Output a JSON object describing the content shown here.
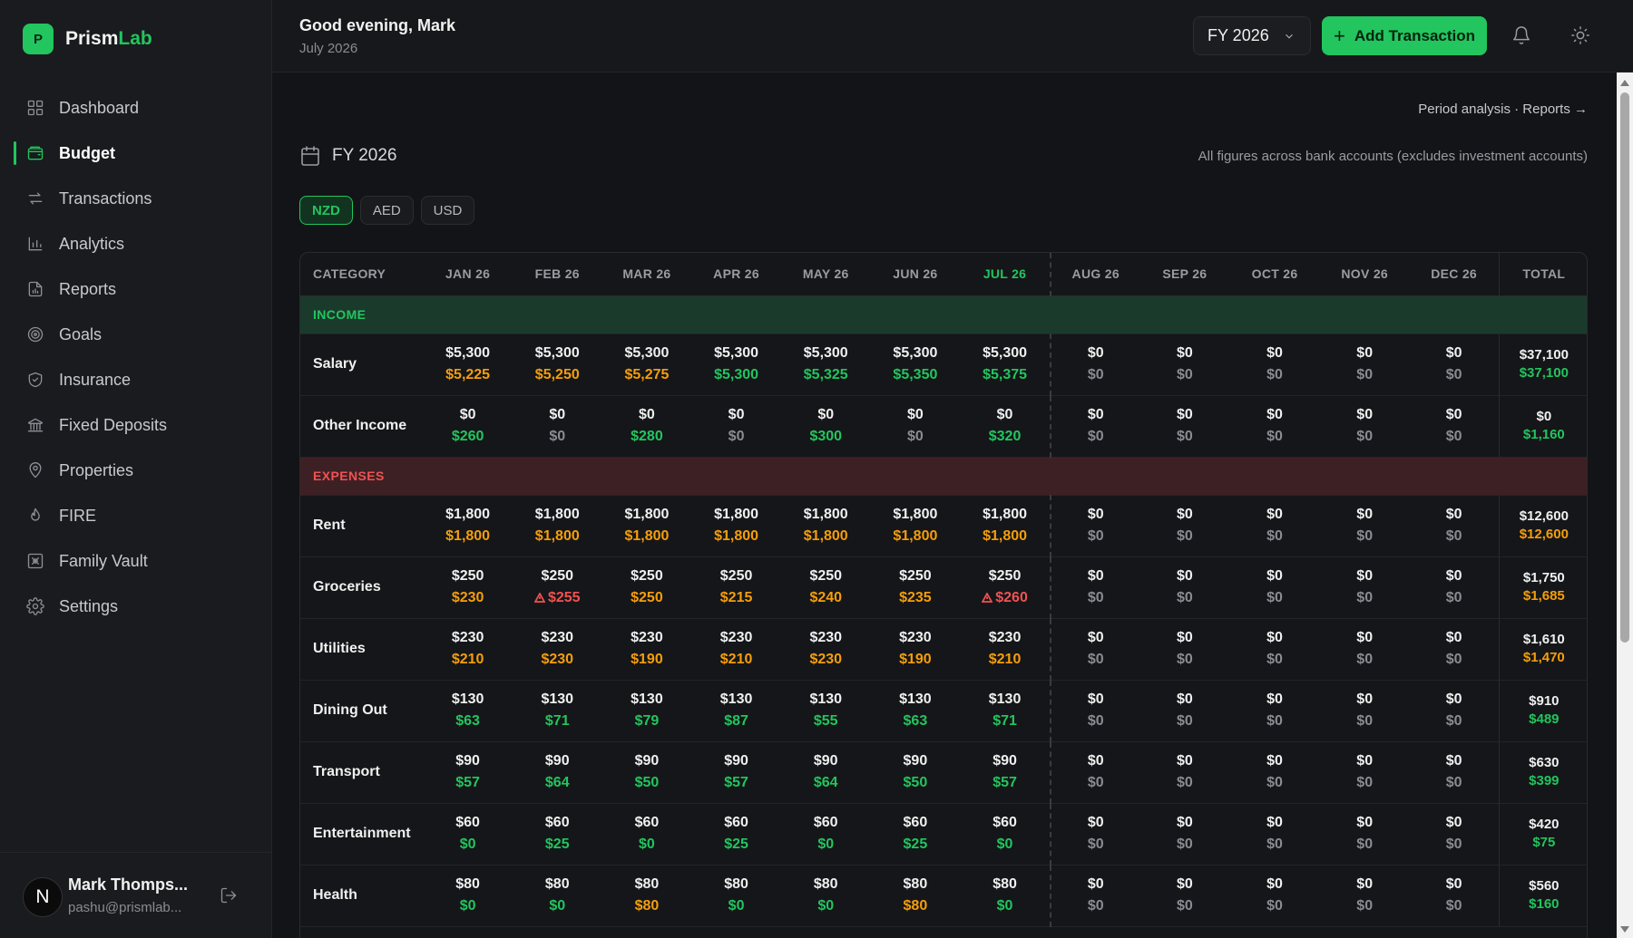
{
  "app": {
    "logo_letter": "P",
    "name_main": "Prism",
    "name_accent": "Lab",
    "accent_color": "#22c55e"
  },
  "sidebar": {
    "items": [
      {
        "label": "Dashboard",
        "icon": "grid-icon"
      },
      {
        "label": "Budget",
        "icon": "wallet-icon",
        "active": true
      },
      {
        "label": "Transactions",
        "icon": "arrows-icon"
      },
      {
        "label": "Analytics",
        "icon": "bar-chart-icon"
      },
      {
        "label": "Reports",
        "icon": "file-chart-icon"
      },
      {
        "label": "Goals",
        "icon": "target-icon"
      },
      {
        "label": "Insurance",
        "icon": "shield-icon"
      },
      {
        "label": "Fixed Deposits",
        "icon": "bank-icon"
      },
      {
        "label": "Properties",
        "icon": "map-pin-icon"
      },
      {
        "label": "FIRE",
        "icon": "flame-icon"
      },
      {
        "label": "Family Vault",
        "icon": "vault-icon"
      },
      {
        "label": "Settings",
        "icon": "gear-icon"
      }
    ],
    "user": {
      "initial": "N",
      "name": "Mark Thomps...",
      "email": "pashu@prismlab..."
    }
  },
  "topbar": {
    "greeting": "Good evening, Mark",
    "date": "July 2026",
    "fy_selected": "FY 2026",
    "add_label": "Add Transaction"
  },
  "main": {
    "breadcrumb": "Period analysis · Reports →",
    "period": "FY 2026",
    "note": "All figures across bank accounts (excludes investment accounts)",
    "currencies": [
      "NZD",
      "AED",
      "USD"
    ],
    "active_currency": "NZD"
  },
  "table": {
    "columns": [
      "CATEGORY",
      "JAN 26",
      "FEB 26",
      "MAR 26",
      "APR 26",
      "MAY 26",
      "JUN 26",
      "JUL 26",
      "AUG 26",
      "SEP 26",
      "OCT 26",
      "NOV 26",
      "DEC 26",
      "TOTAL"
    ],
    "current_month_index": 7,
    "income_label": "INCOME",
    "expenses_label": "EXPENSES",
    "income": [
      {
        "category": "Salary",
        "budget": [
          "$5,300",
          "$5,300",
          "$5,300",
          "$5,300",
          "$5,300",
          "$5,300",
          "$5,300",
          "$0",
          "$0",
          "$0",
          "$0",
          "$0"
        ],
        "actual": [
          "$5,225",
          "$5,250",
          "$5,275",
          "$5,300",
          "$5,325",
          "$5,350",
          "$5,375",
          "$0",
          "$0",
          "$0",
          "$0",
          "$0"
        ],
        "status": [
          "amber",
          "amber",
          "amber",
          "green",
          "green",
          "green",
          "green",
          "future",
          "future",
          "future",
          "future",
          "future"
        ],
        "total_budget": "$37,100",
        "total_actual": "$37,100",
        "total_status": "green"
      },
      {
        "category": "Other Income",
        "budget": [
          "$0",
          "$0",
          "$0",
          "$0",
          "$0",
          "$0",
          "$0",
          "$0",
          "$0",
          "$0",
          "$0",
          "$0"
        ],
        "actual": [
          "$260",
          "$0",
          "$280",
          "$0",
          "$300",
          "$0",
          "$320",
          "$0",
          "$0",
          "$0",
          "$0",
          "$0"
        ],
        "status": [
          "green",
          "muted",
          "green",
          "muted",
          "green",
          "muted",
          "green",
          "future",
          "future",
          "future",
          "future",
          "future"
        ],
        "total_budget": "$0",
        "total_actual": "$1,160",
        "total_status": "green"
      }
    ],
    "expenses": [
      {
        "category": "Rent",
        "budget": [
          "$1,800",
          "$1,800",
          "$1,800",
          "$1,800",
          "$1,800",
          "$1,800",
          "$1,800",
          "$0",
          "$0",
          "$0",
          "$0",
          "$0"
        ],
        "actual": [
          "$1,800",
          "$1,800",
          "$1,800",
          "$1,800",
          "$1,800",
          "$1,800",
          "$1,800",
          "$0",
          "$0",
          "$0",
          "$0",
          "$0"
        ],
        "status": [
          "amber",
          "amber",
          "amber",
          "amber",
          "amber",
          "amber",
          "amber",
          "future",
          "future",
          "future",
          "future",
          "future"
        ],
        "total_budget": "$12,600",
        "total_actual": "$12,600",
        "total_status": "amber"
      },
      {
        "category": "Groceries",
        "budget": [
          "$250",
          "$250",
          "$250",
          "$250",
          "$250",
          "$250",
          "$250",
          "$0",
          "$0",
          "$0",
          "$0",
          "$0"
        ],
        "actual": [
          "$230",
          "$255",
          "$250",
          "$215",
          "$240",
          "$235",
          "$260",
          "$0",
          "$0",
          "$0",
          "$0",
          "$0"
        ],
        "status": [
          "amber",
          "red",
          "amber",
          "amber",
          "amber",
          "amber",
          "red",
          "future",
          "future",
          "future",
          "future",
          "future"
        ],
        "total_budget": "$1,750",
        "total_actual": "$1,685",
        "total_status": "amber"
      },
      {
        "category": "Utilities",
        "budget": [
          "$230",
          "$230",
          "$230",
          "$230",
          "$230",
          "$230",
          "$230",
          "$0",
          "$0",
          "$0",
          "$0",
          "$0"
        ],
        "actual": [
          "$210",
          "$230",
          "$190",
          "$210",
          "$230",
          "$190",
          "$210",
          "$0",
          "$0",
          "$0",
          "$0",
          "$0"
        ],
        "status": [
          "amber",
          "amber",
          "amber",
          "amber",
          "amber",
          "amber",
          "amber",
          "future",
          "future",
          "future",
          "future",
          "future"
        ],
        "total_budget": "$1,610",
        "total_actual": "$1,470",
        "total_status": "amber"
      },
      {
        "category": "Dining Out",
        "budget": [
          "$130",
          "$130",
          "$130",
          "$130",
          "$130",
          "$130",
          "$130",
          "$0",
          "$0",
          "$0",
          "$0",
          "$0"
        ],
        "actual": [
          "$63",
          "$71",
          "$79",
          "$87",
          "$55",
          "$63",
          "$71",
          "$0",
          "$0",
          "$0",
          "$0",
          "$0"
        ],
        "status": [
          "green",
          "green",
          "green",
          "green",
          "green",
          "green",
          "green",
          "future",
          "future",
          "future",
          "future",
          "future"
        ],
        "total_budget": "$910",
        "total_actual": "$489",
        "total_status": "green"
      },
      {
        "category": "Transport",
        "budget": [
          "$90",
          "$90",
          "$90",
          "$90",
          "$90",
          "$90",
          "$90",
          "$0",
          "$0",
          "$0",
          "$0",
          "$0"
        ],
        "actual": [
          "$57",
          "$64",
          "$50",
          "$57",
          "$64",
          "$50",
          "$57",
          "$0",
          "$0",
          "$0",
          "$0",
          "$0"
        ],
        "status": [
          "green",
          "green",
          "green",
          "green",
          "green",
          "green",
          "green",
          "future",
          "future",
          "future",
          "future",
          "future"
        ],
        "total_budget": "$630",
        "total_actual": "$399",
        "total_status": "green"
      },
      {
        "category": "Entertainment",
        "budget": [
          "$60",
          "$60",
          "$60",
          "$60",
          "$60",
          "$60",
          "$60",
          "$0",
          "$0",
          "$0",
          "$0",
          "$0"
        ],
        "actual": [
          "$0",
          "$25",
          "$0",
          "$25",
          "$0",
          "$25",
          "$0",
          "$0",
          "$0",
          "$0",
          "$0",
          "$0"
        ],
        "status": [
          "green",
          "green",
          "green",
          "green",
          "green",
          "green",
          "green",
          "future",
          "future",
          "future",
          "future",
          "future"
        ],
        "total_budget": "$420",
        "total_actual": "$75",
        "total_status": "green"
      },
      {
        "category": "Health",
        "budget": [
          "$80",
          "$80",
          "$80",
          "$80",
          "$80",
          "$80",
          "$80",
          "$0",
          "$0",
          "$0",
          "$0",
          "$0"
        ],
        "actual": [
          "$0",
          "$0",
          "$80",
          "$0",
          "$0",
          "$80",
          "$0",
          "$0",
          "$0",
          "$0",
          "$0",
          "$0"
        ],
        "status": [
          "green",
          "green",
          "amber",
          "green",
          "green",
          "amber",
          "green",
          "future",
          "future",
          "future",
          "future",
          "future"
        ],
        "total_budget": "$560",
        "total_actual": "$160",
        "total_status": "green"
      }
    ]
  }
}
